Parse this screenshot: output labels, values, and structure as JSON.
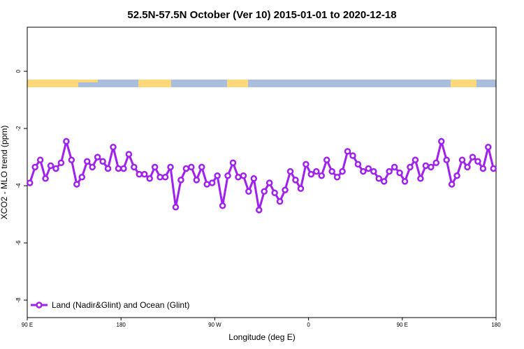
{
  "chart_data": {
    "type": "line",
    "title": "52.5N-57.5N October (Ver 10)   2015-01-01 to 2020-12-18",
    "x_label": "Longitude (deg E)",
    "y_label": "XCO2 - MLO trend (ppm)",
    "xlim": [
      90,
      540
    ],
    "ylim": [
      -8.61,
      1.54
    ],
    "xticks": [
      {
        "value": 90,
        "label": "90 E"
      },
      {
        "value": 180,
        "label": "180"
      },
      {
        "value": 270,
        "label": "90 W"
      },
      {
        "value": 360,
        "label": "0"
      },
      {
        "value": 450,
        "label": "90 E"
      },
      {
        "value": 540,
        "label": "180"
      }
    ],
    "yticks": [
      0,
      -2,
      -4,
      -6,
      -8
    ],
    "legend": "bottom-left",
    "x": [
      92.5,
      97.5,
      102.5,
      107.5,
      112.5,
      117.5,
      122.5,
      127.5,
      132.5,
      137.5,
      142.5,
      147.5,
      152.5,
      157.5,
      162.5,
      167.5,
      172.5,
      177.5,
      182.5,
      187.5,
      192.5,
      197.5,
      202.5,
      207.5,
      212.5,
      217.5,
      222.5,
      227.5,
      232.5,
      237.5,
      242.5,
      247.5,
      252.5,
      257.5,
      262.5,
      267.5,
      272.5,
      277.5,
      282.5,
      287.5,
      292.5,
      297.5,
      302.5,
      307.5,
      312.5,
      317.5,
      322.5,
      327.5,
      332.5,
      337.5,
      342.5,
      347.5,
      352.5,
      357.5,
      362.5,
      367.5,
      372.5,
      377.5,
      382.5,
      387.5,
      392.5,
      397.5,
      402.5,
      407.5,
      412.5,
      417.5,
      422.5,
      427.5,
      432.5,
      437.5,
      442.5,
      447.5,
      452.5,
      457.5,
      462.5,
      467.5,
      472.5,
      477.5,
      482.5,
      487.5,
      492.5,
      497.5,
      502.5,
      507.5,
      512.5,
      517.5,
      522.5,
      527.5,
      532.5,
      537.5
    ],
    "series": [
      {
        "name": "Land (Nadir&Glint) and Ocean (Glint)",
        "color": "#a020f0",
        "values": [
          -3.9,
          -3.35,
          -3.1,
          -3.75,
          -3.3,
          -3.4,
          -3.2,
          -2.45,
          -3.1,
          -3.95,
          -3.7,
          -3.15,
          -3.35,
          -3.0,
          -3.15,
          -3.4,
          -2.65,
          -3.4,
          -3.4,
          -2.9,
          -3.35,
          -3.6,
          -3.6,
          -3.75,
          -3.35,
          -3.7,
          -3.7,
          -3.35,
          -4.75,
          -3.8,
          -3.4,
          -3.35,
          -3.8,
          -3.35,
          -3.95,
          -3.9,
          -3.65,
          -4.7,
          -3.65,
          -3.2,
          -3.7,
          -3.65,
          -4.2,
          -3.75,
          -4.85,
          -4.2,
          -3.9,
          -4.25,
          -4.55,
          -4.15,
          -3.5,
          -3.8,
          -4.1,
          -3.25,
          -3.6,
          -3.5,
          -3.65,
          -3.1,
          -3.5,
          -3.7,
          -3.5,
          -2.8,
          -2.95,
          -3.25,
          -3.5,
          -3.4,
          -3.5,
          -3.75,
          -3.85,
          -3.5,
          -3.35,
          -3.55,
          -3.85,
          -3.35,
          -3.1,
          -3.75,
          -3.3,
          -3.35,
          -3.2,
          -2.45,
          -3.1,
          -3.95,
          -3.65,
          -3.1,
          -3.35,
          -3.0,
          -3.15,
          -3.4,
          -2.65,
          -3.4
        ]
      }
    ]
  }
}
